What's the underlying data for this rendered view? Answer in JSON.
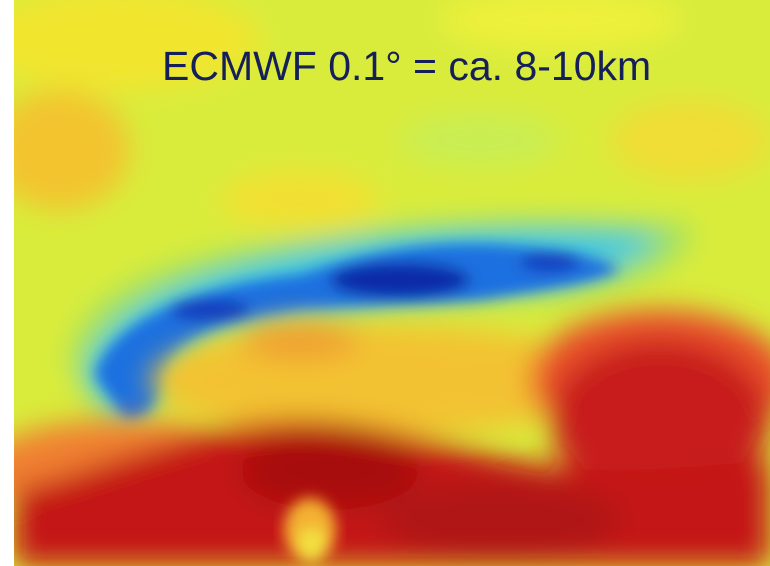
{
  "title": "ECMWF 0.1° = ca. 8-10km"
}
